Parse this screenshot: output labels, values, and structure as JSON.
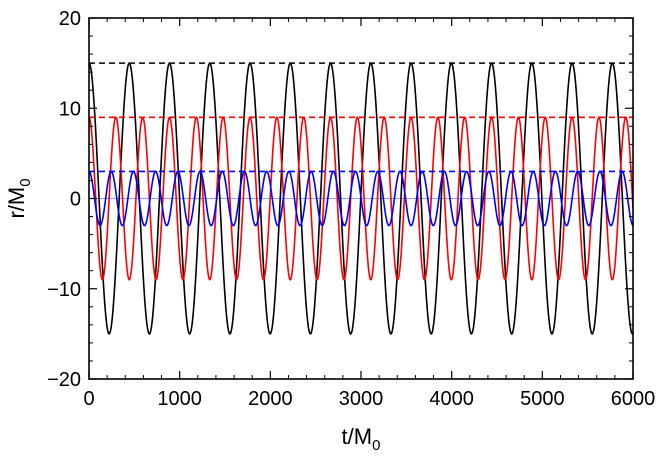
{
  "chart_data": {
    "type": "line",
    "title": "",
    "xlabel": "t/M",
    "xlabel_subscript": "0",
    "ylabel": "r/M",
    "ylabel_subscript": "0",
    "xlim": [
      0,
      6000
    ],
    "ylim": [
      -20,
      20
    ],
    "x_ticks": [
      0,
      1000,
      2000,
      3000,
      4000,
      5000,
      6000
    ],
    "x_tick_labels": [
      "0",
      "1000",
      "2000",
      "3000",
      "4000",
      "5000",
      "6000"
    ],
    "y_ticks": [
      -20,
      -10,
      0,
      10,
      20
    ],
    "y_tick_labels": [
      "−20",
      "−10",
      "0",
      "10",
      "20"
    ],
    "grid": false,
    "legend": "none",
    "series": [
      {
        "color": "#000000",
        "style": "solid",
        "kind": "cosine",
        "amplitude": 15,
        "period": 444,
        "x_range": [
          0,
          6000
        ]
      },
      {
        "color": "#ff0000",
        "style": "solid",
        "kind": "cosine",
        "amplitude": 9,
        "period": 296,
        "x_range": [
          0,
          6000
        ]
      },
      {
        "color": "#0000ff",
        "style": "solid",
        "kind": "cosine",
        "amplitude": 3,
        "period": 245,
        "x_range": [
          0,
          6000
        ]
      },
      {
        "color": "#000000",
        "style": "dashed",
        "kind": "constant",
        "value": 15,
        "x_range": [
          0,
          6000
        ]
      },
      {
        "color": "#ff0000",
        "style": "dashed",
        "kind": "constant",
        "value": 9,
        "x_range": [
          0,
          6000
        ]
      },
      {
        "color": "#0000ff",
        "style": "dashed",
        "kind": "constant",
        "value": 3,
        "x_range": [
          0,
          6000
        ]
      },
      {
        "color": "#9999ff",
        "style": "solid",
        "kind": "constant",
        "value": 0,
        "x_range": [
          0,
          6000
        ]
      }
    ]
  }
}
